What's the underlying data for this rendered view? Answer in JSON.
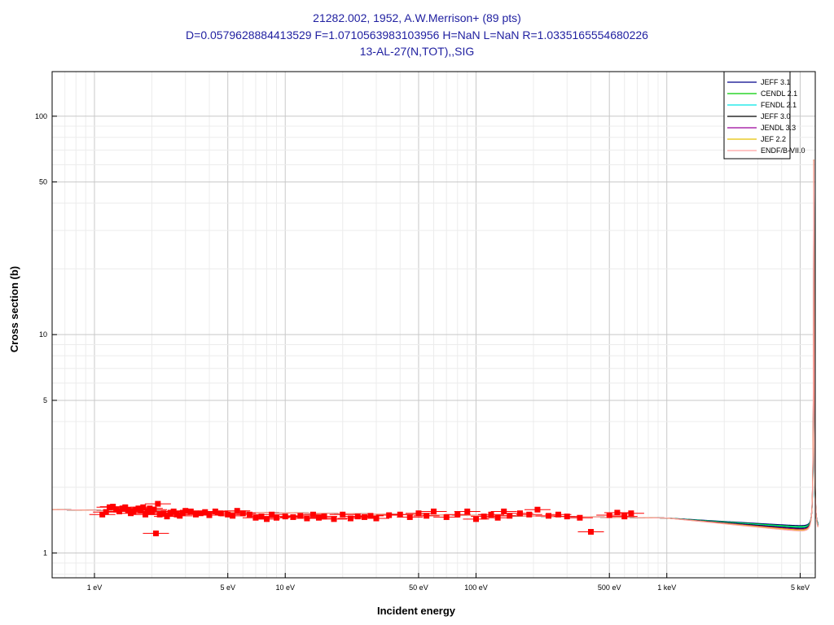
{
  "header": {
    "line1": "21282.002, 1952, A.W.Merrison+ (89 pts)",
    "line2": "D=0.0579628884413529 F=1.0710563983103956 H=NaN L=NaN R=1.0335165554680226",
    "line3": "13-AL-27(N,TOT),,SIG"
  },
  "chart_data": {
    "type": "scatter",
    "title": "21282.002, 1952, A.W.Merrison+ (89 pts)",
    "xlabel": "Incident energy",
    "ylabel": "Cross section (b)",
    "xscale": "log",
    "yscale": "log",
    "xlim": [
      0.6,
      6000
    ],
    "ylim": [
      0.77,
      160
    ],
    "grid": true,
    "legend_position": "top-right",
    "x_ticks": [
      {
        "value": 1,
        "label": "1 eV"
      },
      {
        "value": 5,
        "label": "5 eV"
      },
      {
        "value": 10,
        "label": "10 eV"
      },
      {
        "value": 50,
        "label": "50 eV"
      },
      {
        "value": 100,
        "label": "100 eV"
      },
      {
        "value": 500,
        "label": "500 eV"
      },
      {
        "value": 1000,
        "label": "1 keV"
      },
      {
        "value": 5000,
        "label": "5 keV"
      }
    ],
    "y_ticks": [
      {
        "value": 1,
        "label": "1"
      },
      {
        "value": 5,
        "label": "5"
      },
      {
        "value": 10,
        "label": "10"
      },
      {
        "value": 50,
        "label": "50"
      },
      {
        "value": 100,
        "label": "100"
      }
    ],
    "series": [
      {
        "name": "JEFF 3.1",
        "color": "#00008b",
        "kind": "line"
      },
      {
        "name": "CENDL 2.1",
        "color": "#00cc00",
        "kind": "line"
      },
      {
        "name": "FENDL 2.1",
        "color": "#00e5e5",
        "kind": "line"
      },
      {
        "name": "JEFF 3.0",
        "color": "#000000",
        "kind": "line"
      },
      {
        "name": "JENDL 3.3",
        "color": "#9b009b",
        "kind": "line"
      },
      {
        "name": "JEF 2.2",
        "color": "#e5c000",
        "kind": "line"
      },
      {
        "name": "ENDF/B-VII.0",
        "color": "#ffa0a0",
        "kind": "line"
      }
    ],
    "experimental_points": {
      "color": "#ff0000",
      "x": [
        1.1,
        1.15,
        1.2,
        1.25,
        1.3,
        1.35,
        1.4,
        1.45,
        1.5,
        1.55,
        1.6,
        1.65,
        1.7,
        1.75,
        1.8,
        1.85,
        1.9,
        1.95,
        2.0,
        2.05,
        2.1,
        2.15,
        2.2,
        2.3,
        2.4,
        2.5,
        2.6,
        2.7,
        2.8,
        2.9,
        3.0,
        3.2,
        3.4,
        3.6,
        3.8,
        4.0,
        4.3,
        4.6,
        5.0,
        5.3,
        5.6,
        6.0,
        6.5,
        7.0,
        7.5,
        8.0,
        8.5,
        9.0,
        10,
        11,
        12,
        13,
        14,
        15,
        16,
        18,
        20,
        22,
        24,
        26,
        28,
        30,
        35,
        40,
        45,
        50,
        55,
        60,
        70,
        80,
        90,
        100,
        110,
        120,
        130,
        140,
        150,
        170,
        190,
        210,
        240,
        270,
        300,
        350,
        400,
        500,
        550,
        600,
        650
      ],
      "y": [
        1.5,
        1.54,
        1.62,
        1.63,
        1.58,
        1.55,
        1.6,
        1.62,
        1.57,
        1.52,
        1.55,
        1.58,
        1.6,
        1.57,
        1.62,
        1.5,
        1.55,
        1.6,
        1.55,
        1.58,
        1.23,
        1.68,
        1.5,
        1.52,
        1.47,
        1.53,
        1.55,
        1.5,
        1.48,
        1.53,
        1.56,
        1.55,
        1.5,
        1.52,
        1.54,
        1.49,
        1.55,
        1.52,
        1.5,
        1.48,
        1.56,
        1.52,
        1.5,
        1.45,
        1.47,
        1.43,
        1.5,
        1.45,
        1.47,
        1.46,
        1.48,
        1.44,
        1.5,
        1.45,
        1.47,
        1.43,
        1.5,
        1.44,
        1.47,
        1.46,
        1.48,
        1.44,
        1.49,
        1.5,
        1.46,
        1.52,
        1.48,
        1.55,
        1.46,
        1.5,
        1.55,
        1.43,
        1.47,
        1.5,
        1.45,
        1.55,
        1.48,
        1.52,
        1.5,
        1.58,
        1.48,
        1.5,
        1.47,
        1.45,
        1.25,
        1.49,
        1.53,
        1.47,
        1.52
      ]
    }
  }
}
